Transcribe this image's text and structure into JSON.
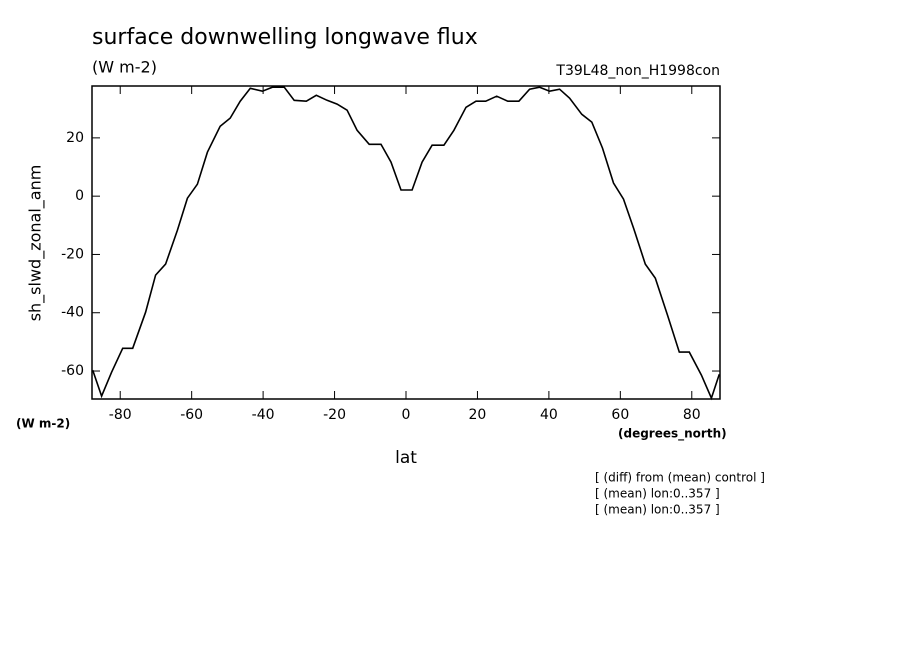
{
  "chart_data": {
    "type": "line",
    "title": "surface downwelling longwave flux",
    "subtitle": "(W m-2)",
    "dataset": "T39L48_non_H1998con",
    "y_label": "sh_slwd_zonal_anm",
    "y_units": "(W m-2)",
    "x_label": "lat",
    "x_units": "(degrees_north)",
    "notes": [
      "[ (diff) from (mean) control ]",
      "[ (mean) lon:0..357 ]",
      "[ (mean) lon:0..357 ]"
    ],
    "xlim": [
      -87.9,
      87.9
    ],
    "ylim": [
      -69.6,
      37.8
    ],
    "xticks": [
      -80,
      -60,
      -40,
      -20,
      0,
      20,
      40,
      60,
      80
    ],
    "yticks": [
      -60,
      -40,
      -20,
      0,
      20
    ],
    "series": [
      {
        "color": "#000000",
        "x": [
          -87.7,
          -85.2,
          -82.4,
          -79.3,
          -76.5,
          -72.9,
          -70.1,
          -67.3,
          -64.0,
          -61.2,
          -58.4,
          -55.6,
          -52.0,
          -49.2,
          -46.4,
          -43.6,
          -40.2,
          -37.4,
          -34.1,
          -31.3,
          -27.9,
          -25.1,
          -22.1,
          -19.3,
          -16.5,
          -13.7,
          -10.3,
          -7.0,
          -4.2,
          -1.4,
          1.7,
          4.5,
          7.3,
          10.6,
          13.4,
          16.8,
          19.6,
          22.3,
          25.4,
          28.5,
          31.6,
          34.6,
          37.4,
          40.2,
          43.0,
          45.8,
          49.2,
          52.0,
          55.0,
          58.1,
          60.9,
          63.7,
          67.0,
          69.8,
          73.2,
          76.5,
          79.3,
          82.7,
          85.5,
          87.7
        ],
        "values": [
          -59.7,
          -68.6,
          -60.4,
          -52.2,
          -52.2,
          -39.8,
          -27.1,
          -23.3,
          -11.7,
          -0.7,
          4.1,
          15.1,
          24.0,
          26.8,
          32.6,
          37.0,
          36.0,
          37.4,
          37.4,
          32.9,
          32.6,
          34.6,
          32.9,
          31.6,
          29.5,
          22.6,
          17.8,
          17.8,
          11.7,
          2.1,
          2.1,
          11.7,
          17.5,
          17.5,
          22.6,
          30.5,
          32.6,
          32.6,
          34.3,
          32.6,
          32.6,
          36.7,
          37.4,
          36.0,
          36.7,
          33.6,
          28.1,
          25.4,
          16.5,
          4.5,
          -1.0,
          -11.0,
          -23.3,
          -28.1,
          -40.8,
          -53.5,
          -53.5,
          -61.4,
          -69.3,
          -61.1
        ]
      }
    ]
  }
}
